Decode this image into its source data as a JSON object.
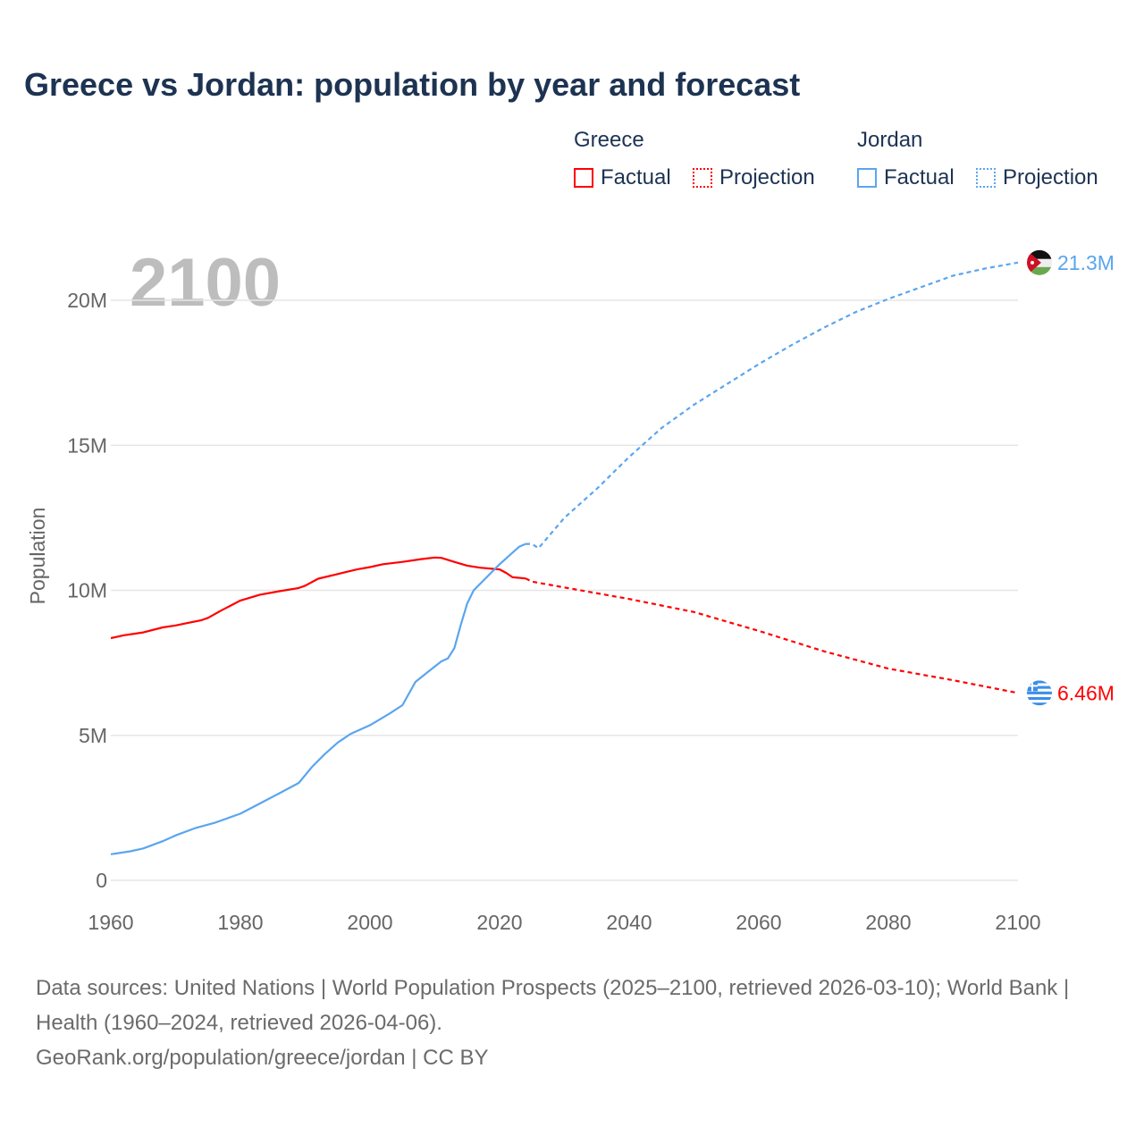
{
  "title": "Greece vs Jordan: population by year and forecast",
  "legend": [
    {
      "group": "Greece",
      "items": [
        {
          "label": "Factual",
          "style": "solid"
        },
        {
          "label": "Projection",
          "style": "dotted"
        }
      ],
      "color": "#ff0000"
    },
    {
      "group": "Jordan",
      "items": [
        {
          "label": "Factual",
          "style": "solid"
        },
        {
          "label": "Projection",
          "style": "dotted"
        }
      ],
      "color": "#5aa5ef"
    }
  ],
  "footer": {
    "sources": "Data sources: United Nations | World Population Prospects (2025–2100, retrieved 2026-03-10); World Bank | Health (1960–2024, retrieved 2026-04-06).",
    "link": "GeoRank.org/population/greece/jordan | CC BY"
  },
  "chart_data": {
    "type": "line",
    "title": "Greece vs Jordan: population by year and forecast",
    "year_label": "2100",
    "ylabel": "Population",
    "xlabel": "",
    "xlim": [
      1960,
      2100
    ],
    "ylim": [
      0,
      21.5
    ],
    "y_unit": "millions",
    "x_ticks": [
      "1960",
      "1980",
      "2000",
      "2020",
      "2040",
      "2060",
      "2080",
      "2100"
    ],
    "x_tick_values": [
      1960,
      1980,
      2000,
      2020,
      2040,
      2060,
      2080,
      2100
    ],
    "y_ticks": [
      "0",
      "5M",
      "10M",
      "15M",
      "20M"
    ],
    "y_tick_values": [
      0,
      5,
      10,
      15,
      20
    ],
    "grid": true,
    "series": [
      {
        "name": "Greece",
        "part": "Factual",
        "color": "#ff0000",
        "x": [
          1960,
          1962,
          1965,
          1968,
          1970,
          1972,
          1974,
          1975,
          1977,
          1980,
          1983,
          1986,
          1989,
          1990,
          1992,
          1995,
          1998,
          2000,
          2002,
          2005,
          2008,
          2010,
          2011,
          2013,
          2015,
          2017,
          2020,
          2021,
          2022,
          2024
        ],
        "y": [
          8.35,
          8.45,
          8.55,
          8.72,
          8.79,
          8.88,
          8.97,
          9.05,
          9.3,
          9.65,
          9.85,
          9.97,
          10.08,
          10.16,
          10.4,
          10.56,
          10.72,
          10.8,
          10.9,
          10.98,
          11.08,
          11.13,
          11.12,
          10.98,
          10.85,
          10.78,
          10.72,
          10.6,
          10.45,
          10.41
        ]
      },
      {
        "name": "Greece",
        "part": "Projection",
        "color": "#ff0000",
        "x": [
          2024,
          2025,
          2030,
          2040,
          2050,
          2060,
          2070,
          2080,
          2090,
          2100
        ],
        "y": [
          10.41,
          10.3,
          10.1,
          9.7,
          9.25,
          8.6,
          7.9,
          7.3,
          6.9,
          6.46
        ]
      },
      {
        "name": "Jordan",
        "part": "Factual",
        "color": "#5aa5ef",
        "x": [
          1960,
          1963,
          1965,
          1968,
          1970,
          1973,
          1976,
          1980,
          1983,
          1986,
          1989,
          1991,
          1993,
          1995,
          1997,
          2000,
          2003,
          2005,
          2007,
          2009,
          2011,
          2012,
          2013,
          2014,
          2015,
          2016,
          2018,
          2020,
          2022,
          2023,
          2024
        ],
        "y": [
          0.9,
          1.0,
          1.1,
          1.35,
          1.55,
          1.8,
          1.98,
          2.3,
          2.65,
          3.0,
          3.36,
          3.9,
          4.35,
          4.75,
          5.05,
          5.35,
          5.75,
          6.04,
          6.84,
          7.2,
          7.55,
          7.65,
          8.0,
          8.8,
          9.55,
          10.0,
          10.45,
          10.9,
          11.3,
          11.5,
          11.6
        ]
      },
      {
        "name": "Jordan",
        "part": "Projection",
        "color": "#5aa5ef",
        "x": [
          2024,
          2025,
          2026,
          2030,
          2035,
          2040,
          2045,
          2050,
          2055,
          2060,
          2065,
          2070,
          2075,
          2080,
          2085,
          2090,
          2095,
          2100
        ],
        "y": [
          11.6,
          11.6,
          11.45,
          12.5,
          13.5,
          14.6,
          15.6,
          16.4,
          17.1,
          17.8,
          18.45,
          19.05,
          19.6,
          20.05,
          20.45,
          20.85,
          21.1,
          21.3
        ]
      }
    ],
    "end_labels": [
      {
        "country": "Jordan",
        "text": "21.3M",
        "value": 21.3,
        "color": "#5aa5ef"
      },
      {
        "country": "Greece",
        "text": "6.46M",
        "value": 6.46,
        "color": "#ff0000"
      }
    ]
  }
}
